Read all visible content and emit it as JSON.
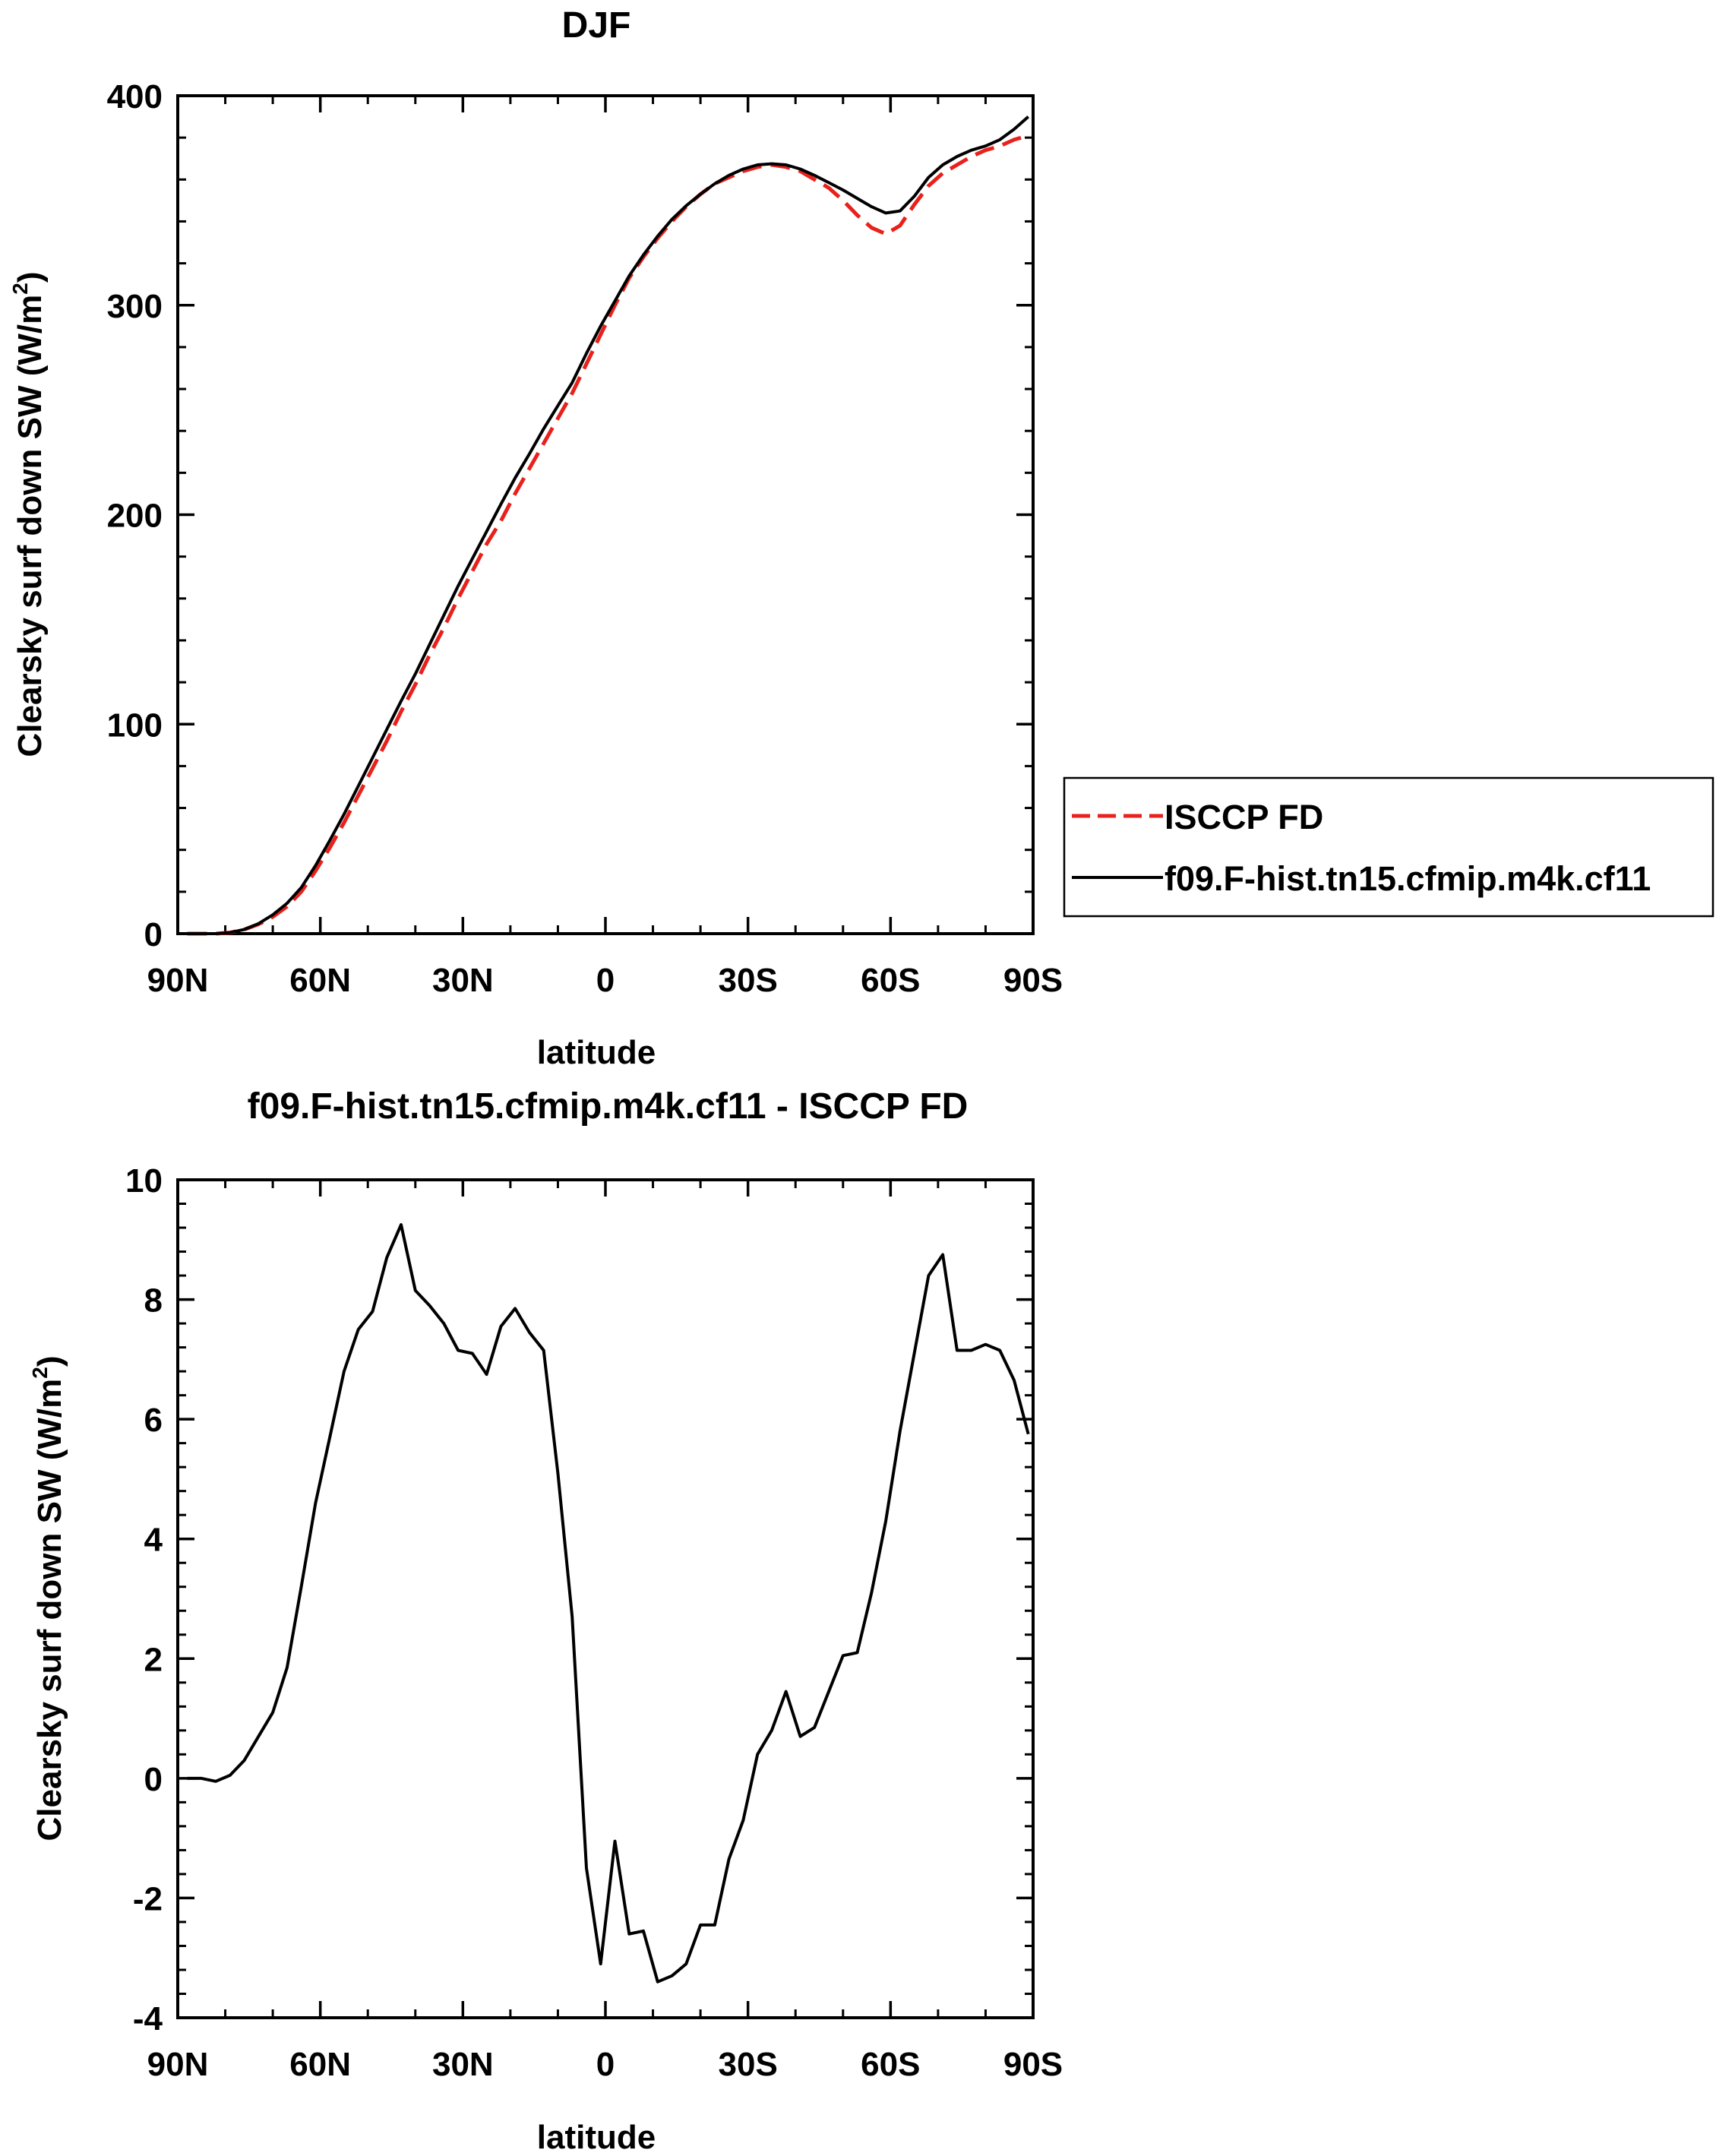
{
  "chart_data": [
    {
      "type": "line",
      "title": "DJF",
      "xlabel": "latitude",
      "ylabel": "Clearsky surf down SW (W/m",
      "ylabel_sup": "2",
      "ylabel_tail": ")",
      "xlim": [
        -90,
        90
      ],
      "ylim": [
        0,
        400
      ],
      "xticks": [
        -90,
        -60,
        -30,
        0,
        30,
        60,
        90
      ],
      "xtick_labels": [
        "90N",
        "60N",
        "30N",
        "0",
        "30S",
        "60S",
        "90S"
      ],
      "yticks": [
        0,
        100,
        200,
        300,
        400
      ],
      "ytick_labels": [
        "0",
        "100",
        "200",
        "300",
        "400"
      ],
      "legend": {
        "position": "right",
        "entries": [
          {
            "name": "ISCCP FD",
            "color": "#e8211c",
            "dash": "dashed"
          },
          {
            "name": "f09.F-hist.tn15.cfmip.m4k.cf11",
            "color": "#000000",
            "dash": "solid"
          }
        ]
      },
      "series": [
        {
          "name": "ISCCP FD",
          "color": "#e8211c",
          "dash": "dashed",
          "x": [
            -88,
            -85,
            -82,
            -79,
            -76,
            -73,
            -70,
            -67,
            -64,
            -61,
            -58,
            -55,
            -52,
            -49,
            -46,
            -43,
            -40,
            -37,
            -34,
            -31,
            -28,
            -25,
            -22,
            -19,
            -16,
            -13,
            -10,
            -7,
            -4,
            -1,
            2,
            5,
            8,
            11,
            14,
            17,
            20,
            23,
            26,
            29,
            32,
            35,
            38,
            41,
            44,
            47,
            50,
            53,
            56,
            59,
            62,
            65,
            68,
            71,
            74,
            77,
            80,
            83,
            86,
            89
          ],
          "y": [
            0,
            0,
            0,
            0.5,
            2,
            4.5,
            8,
            13,
            20,
            30,
            41,
            53,
            66,
            79,
            92,
            106,
            119,
            133,
            146,
            160,
            173,
            186,
            197,
            210,
            222,
            234,
            246,
            258,
            272,
            286,
            300,
            313,
            323,
            332,
            340,
            347,
            353,
            358,
            361,
            364,
            366,
            367,
            366,
            364,
            360,
            356,
            350,
            343,
            337,
            334,
            338,
            348,
            357,
            363,
            367,
            371,
            374,
            376,
            379,
            381
          ]
        },
        {
          "name": "f09.F-hist.tn15.cfmip.m4k.cf11",
          "color": "#000000",
          "dash": "solid",
          "x": [
            -88,
            -85,
            -82,
            -79,
            -76,
            -73,
            -70,
            -67,
            -64,
            -61,
            -58,
            -55,
            -52,
            -49,
            -46,
            -43,
            -40,
            -37,
            -34,
            -31,
            -28,
            -25,
            -22,
            -19,
            -16,
            -13,
            -10,
            -7,
            -4,
            -1,
            2,
            5,
            8,
            11,
            14,
            17,
            20,
            23,
            26,
            29,
            32,
            35,
            38,
            41,
            44,
            47,
            50,
            53,
            56,
            59,
            62,
            65,
            68,
            71,
            74,
            77,
            80,
            83,
            86,
            89
          ],
          "y": [
            0,
            0,
            0,
            0.5,
            2,
            4.8,
            9,
            14.5,
            22,
            32.5,
            44.5,
            57,
            70.5,
            84,
            97.5,
            111,
            124,
            138,
            152,
            166,
            179,
            192,
            205,
            217.5,
            229,
            241,
            252,
            263,
            277,
            290,
            302,
            314,
            324,
            333,
            341,
            347.5,
            353,
            358,
            362,
            365,
            367,
            367.5,
            367,
            365,
            362,
            358.5,
            355,
            351,
            347,
            344,
            345,
            352,
            361,
            367,
            371,
            374,
            376,
            379,
            384,
            390
          ]
        }
      ]
    },
    {
      "type": "line",
      "title": "f09.F-hist.tn15.cfmip.m4k.cf11 - ISCCP FD",
      "xlabel": "latitude",
      "ylabel": "Clearsky surf down SW (W/m",
      "ylabel_sup": "2",
      "ylabel_tail": ")",
      "xlim": [
        -90,
        90
      ],
      "ylim": [
        -4,
        10
      ],
      "xticks": [
        -90,
        -60,
        -30,
        0,
        30,
        60,
        90
      ],
      "xtick_labels": [
        "90N",
        "60N",
        "30N",
        "0",
        "30S",
        "60S",
        "90S"
      ],
      "yticks": [
        -4,
        -2,
        0,
        2,
        4,
        6,
        8,
        10
      ],
      "ytick_labels": [
        "-4",
        "-2",
        "0",
        "2",
        "4",
        "6",
        "8",
        "10"
      ],
      "series": [
        {
          "name": "f09.F-hist.tn15.cfmip.m4k.cf11 - ISCCP FD",
          "color": "#000000",
          "dash": "solid",
          "x": [
            -88,
            -85,
            -82,
            -79,
            -76,
            -73,
            -70,
            -67,
            -64,
            -61,
            -58,
            -55,
            -52,
            -49,
            -46,
            -43,
            -40,
            -37,
            -34,
            -31,
            -28,
            -25,
            -22,
            -19,
            -16,
            -13,
            -10,
            -7,
            -4,
            -1,
            2,
            5,
            8,
            11,
            14,
            17,
            20,
            23,
            26,
            29,
            32,
            35,
            38,
            41,
            44,
            47,
            50,
            53,
            56,
            59,
            62,
            65,
            68,
            71,
            74,
            77,
            80,
            83,
            86,
            89
          ],
          "y": [
            0,
            0,
            -0.05,
            0.05,
            0.3,
            0.7,
            1.1,
            1.85,
            3.2,
            4.6,
            5.7,
            6.8,
            7.5,
            7.8,
            8.7,
            9.25,
            8.15,
            7.9,
            7.6,
            7.15,
            7.1,
            6.75,
            7.55,
            7.85,
            7.45,
            7.15,
            5.1,
            2.7,
            -1.5,
            -3.1,
            -1.05,
            -2.6,
            -2.55,
            -3.4,
            -3.3,
            -3.1,
            -2.45,
            -2.45,
            -1.35,
            -0.7,
            0.4,
            0.8,
            1.45,
            0.7,
            0.85,
            1.45,
            2.05,
            2.1,
            3.1,
            4.3,
            5.8,
            7.1,
            8.4,
            8.75,
            7.15,
            7.15,
            7.25,
            7.15,
            6.65,
            5.75
          ]
        }
      ]
    }
  ]
}
